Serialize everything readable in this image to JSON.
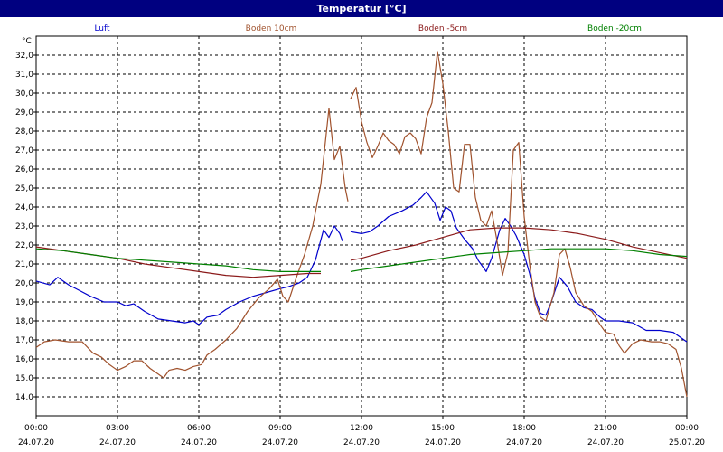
{
  "title": "Temperatur [°C]",
  "chart_data": {
    "type": "line",
    "title": "Temperatur [°C]",
    "ylabel": "°C",
    "ylim": [
      13.0,
      33.0
    ],
    "yticks": [
      "14,0",
      "15,0",
      "16,0",
      "17,0",
      "18,0",
      "19,0",
      "20,0",
      "21,0",
      "22,0",
      "23,0",
      "24,0",
      "25,0",
      "26,0",
      "27,0",
      "28,0",
      "29,0",
      "30,0",
      "31,0",
      "32,0"
    ],
    "xlim": [
      0,
      24
    ],
    "xticks": [
      {
        "time": "00:00",
        "date": "24.07.20"
      },
      {
        "time": "03:00",
        "date": "24.07.20"
      },
      {
        "time": "06:00",
        "date": "24.07.20"
      },
      {
        "time": "09:00",
        "date": "24.07.20"
      },
      {
        "time": "12:00",
        "date": "24.07.20"
      },
      {
        "time": "15:00",
        "date": "24.07.20"
      },
      {
        "time": "18:00",
        "date": "24.07.20"
      },
      {
        "time": "21:00",
        "date": "24.07.20"
      },
      {
        "time": "00:00",
        "date": "25.07.20"
      }
    ],
    "grid": true,
    "series": [
      {
        "name": "Luft",
        "color": "#0000cc",
        "points": [
          [
            0,
            20.1
          ],
          [
            0.5,
            19.9
          ],
          [
            0.8,
            20.3
          ],
          [
            1.2,
            19.9
          ],
          [
            1.6,
            19.6
          ],
          [
            2.0,
            19.3
          ],
          [
            2.5,
            19.0
          ],
          [
            3.0,
            19.0
          ],
          [
            3.3,
            18.8
          ],
          [
            3.6,
            18.9
          ],
          [
            4.0,
            18.5
          ],
          [
            4.5,
            18.1
          ],
          [
            5.0,
            18.0
          ],
          [
            5.5,
            17.9
          ],
          [
            5.8,
            18.0
          ],
          [
            6.0,
            17.8
          ],
          [
            6.3,
            18.2
          ],
          [
            6.7,
            18.3
          ],
          [
            7.0,
            18.6
          ],
          [
            7.5,
            19.0
          ],
          [
            8.0,
            19.3
          ],
          [
            8.5,
            19.5
          ],
          [
            9.0,
            19.7
          ],
          [
            9.3,
            19.8
          ],
          [
            9.7,
            20.0
          ],
          [
            10.0,
            20.3
          ],
          [
            10.3,
            21.2
          ],
          [
            10.6,
            22.8
          ],
          [
            10.8,
            22.4
          ],
          [
            11.0,
            23.0
          ],
          [
            11.2,
            22.6
          ],
          [
            11.3,
            22.2
          ],
          [
            null,
            null
          ],
          [
            11.6,
            22.7
          ],
          [
            12.0,
            22.6
          ],
          [
            12.3,
            22.7
          ],
          [
            12.6,
            23.0
          ],
          [
            13.0,
            23.5
          ],
          [
            13.5,
            23.8
          ],
          [
            13.9,
            24.1
          ],
          [
            14.2,
            24.5
          ],
          [
            14.4,
            24.8
          ],
          [
            14.7,
            24.2
          ],
          [
            14.9,
            23.3
          ],
          [
            15.1,
            24.0
          ],
          [
            15.3,
            23.8
          ],
          [
            15.5,
            22.9
          ],
          [
            15.8,
            22.3
          ],
          [
            16.1,
            21.8
          ],
          [
            16.3,
            21.2
          ],
          [
            16.6,
            20.6
          ],
          [
            16.8,
            21.3
          ],
          [
            17.1,
            22.8
          ],
          [
            17.3,
            23.4
          ],
          [
            17.5,
            23.0
          ],
          [
            17.7,
            22.5
          ],
          [
            18.0,
            21.5
          ],
          [
            18.2,
            20.5
          ],
          [
            18.4,
            19.2
          ],
          [
            18.6,
            18.4
          ],
          [
            18.8,
            18.3
          ],
          [
            19.0,
            19.0
          ],
          [
            19.3,
            20.3
          ],
          [
            19.6,
            19.8
          ],
          [
            19.9,
            19.0
          ],
          [
            20.2,
            18.7
          ],
          [
            20.5,
            18.6
          ],
          [
            20.8,
            18.2
          ],
          [
            21.0,
            18.0
          ],
          [
            21.5,
            18.0
          ],
          [
            22.0,
            17.9
          ],
          [
            22.5,
            17.5
          ],
          [
            23.0,
            17.5
          ],
          [
            23.5,
            17.4
          ],
          [
            24.0,
            16.9
          ]
        ]
      },
      {
        "name": "Boden 10cm",
        "color": "#a0522d",
        "points": [
          [
            0,
            16.6
          ],
          [
            0.3,
            16.9
          ],
          [
            0.7,
            17.0
          ],
          [
            1.2,
            16.9
          ],
          [
            1.7,
            16.9
          ],
          [
            2.1,
            16.3
          ],
          [
            2.4,
            16.1
          ],
          [
            2.7,
            15.7
          ],
          [
            3.0,
            15.4
          ],
          [
            3.3,
            15.6
          ],
          [
            3.6,
            15.9
          ],
          [
            3.9,
            15.9
          ],
          [
            4.2,
            15.5
          ],
          [
            4.5,
            15.2
          ],
          [
            4.7,
            15.0
          ],
          [
            4.9,
            15.4
          ],
          [
            5.2,
            15.5
          ],
          [
            5.5,
            15.4
          ],
          [
            5.8,
            15.6
          ],
          [
            6.1,
            15.7
          ],
          [
            6.3,
            16.2
          ],
          [
            6.6,
            16.5
          ],
          [
            7.0,
            17.0
          ],
          [
            7.4,
            17.6
          ],
          [
            7.8,
            18.5
          ],
          [
            8.2,
            19.2
          ],
          [
            8.6,
            19.7
          ],
          [
            8.9,
            20.2
          ],
          [
            9.1,
            19.3
          ],
          [
            9.3,
            19.0
          ],
          [
            9.6,
            20.3
          ],
          [
            9.9,
            21.5
          ],
          [
            10.2,
            23.0
          ],
          [
            10.5,
            25.2
          ],
          [
            10.8,
            29.2
          ],
          [
            11.0,
            26.5
          ],
          [
            11.2,
            27.2
          ],
          [
            11.4,
            25.0
          ],
          [
            11.5,
            24.3
          ],
          [
            null,
            null
          ],
          [
            11.6,
            29.7
          ],
          [
            11.8,
            30.3
          ],
          [
            12.0,
            28.5
          ],
          [
            12.2,
            27.4
          ],
          [
            12.4,
            26.6
          ],
          [
            12.6,
            27.2
          ],
          [
            12.8,
            27.9
          ],
          [
            13.0,
            27.5
          ],
          [
            13.2,
            27.3
          ],
          [
            13.4,
            26.8
          ],
          [
            13.6,
            27.7
          ],
          [
            13.8,
            27.9
          ],
          [
            14.0,
            27.6
          ],
          [
            14.2,
            26.8
          ],
          [
            14.4,
            28.7
          ],
          [
            14.6,
            29.5
          ],
          [
            14.8,
            32.2
          ],
          [
            15.0,
            30.5
          ],
          [
            15.2,
            28.0
          ],
          [
            15.4,
            25.0
          ],
          [
            15.6,
            24.8
          ],
          [
            15.8,
            27.3
          ],
          [
            16.0,
            27.3
          ],
          [
            16.2,
            24.5
          ],
          [
            16.4,
            23.3
          ],
          [
            16.6,
            23.0
          ],
          [
            16.8,
            23.8
          ],
          [
            17.0,
            22.2
          ],
          [
            17.2,
            20.4
          ],
          [
            17.4,
            21.6
          ],
          [
            17.6,
            27.0
          ],
          [
            17.8,
            27.4
          ],
          [
            18.0,
            23.5
          ],
          [
            18.2,
            21.0
          ],
          [
            18.4,
            19.0
          ],
          [
            18.6,
            18.2
          ],
          [
            18.8,
            18.0
          ],
          [
            19.1,
            19.5
          ],
          [
            19.3,
            21.5
          ],
          [
            19.5,
            21.8
          ],
          [
            19.7,
            20.8
          ],
          [
            19.9,
            19.5
          ],
          [
            20.2,
            18.8
          ],
          [
            20.5,
            18.5
          ],
          [
            20.8,
            17.8
          ],
          [
            21.0,
            17.4
          ],
          [
            21.3,
            17.3
          ],
          [
            21.5,
            16.7
          ],
          [
            21.7,
            16.3
          ],
          [
            22.0,
            16.8
          ],
          [
            22.3,
            17.0
          ],
          [
            22.7,
            16.9
          ],
          [
            23.0,
            16.9
          ],
          [
            23.3,
            16.8
          ],
          [
            23.6,
            16.5
          ],
          [
            23.8,
            15.5
          ],
          [
            24.0,
            14.0
          ]
        ]
      },
      {
        "name": "Boden -5cm",
        "color": "#8b1a1a",
        "points": [
          [
            0,
            21.9
          ],
          [
            1.0,
            21.7
          ],
          [
            2.0,
            21.5
          ],
          [
            3.0,
            21.3
          ],
          [
            4.0,
            21.0
          ],
          [
            5.0,
            20.8
          ],
          [
            6.0,
            20.6
          ],
          [
            7.0,
            20.4
          ],
          [
            8.0,
            20.3
          ],
          [
            9.0,
            20.4
          ],
          [
            10.0,
            20.5
          ],
          [
            10.5,
            20.5
          ],
          [
            null,
            null
          ],
          [
            11.6,
            21.2
          ],
          [
            12.0,
            21.3
          ],
          [
            13.0,
            21.7
          ],
          [
            14.0,
            22.0
          ],
          [
            15.0,
            22.4
          ],
          [
            16.0,
            22.8
          ],
          [
            17.0,
            22.9
          ],
          [
            18.0,
            22.9
          ],
          [
            19.0,
            22.8
          ],
          [
            20.0,
            22.6
          ],
          [
            21.0,
            22.3
          ],
          [
            22.0,
            21.9
          ],
          [
            23.0,
            21.6
          ],
          [
            24.0,
            21.3
          ]
        ]
      },
      {
        "name": "Boden -20cm",
        "color": "#008000",
        "points": [
          [
            0,
            21.8
          ],
          [
            1.0,
            21.7
          ],
          [
            2.0,
            21.5
          ],
          [
            3.0,
            21.3
          ],
          [
            4.0,
            21.2
          ],
          [
            5.0,
            21.1
          ],
          [
            6.0,
            21.0
          ],
          [
            7.0,
            20.9
          ],
          [
            8.0,
            20.7
          ],
          [
            9.0,
            20.6
          ],
          [
            10.0,
            20.6
          ],
          [
            10.5,
            20.6
          ],
          [
            null,
            null
          ],
          [
            11.6,
            20.6
          ],
          [
            12.0,
            20.7
          ],
          [
            13.0,
            20.9
          ],
          [
            14.0,
            21.1
          ],
          [
            15.0,
            21.3
          ],
          [
            16.0,
            21.5
          ],
          [
            17.0,
            21.6
          ],
          [
            18.0,
            21.7
          ],
          [
            19.0,
            21.8
          ],
          [
            20.0,
            21.8
          ],
          [
            21.0,
            21.8
          ],
          [
            22.0,
            21.7
          ],
          [
            23.0,
            21.5
          ],
          [
            24.0,
            21.4
          ]
        ]
      }
    ]
  }
}
